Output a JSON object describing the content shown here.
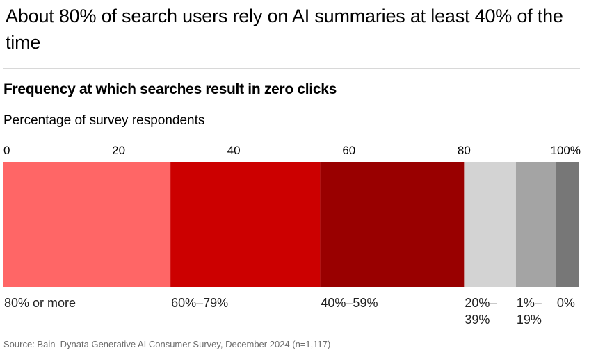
{
  "title": "About 80% of search users rely on AI summaries at least 40% of the time",
  "source": "Source: Bain–Dynata Generative AI Consumer Survey, December 2024 (n=1,117)",
  "chart_data": {
    "type": "bar",
    "orientation": "horizontal-stacked",
    "title": "Frequency at which searches result in zero clicks",
    "ylabel": "Percentage of survey respondents",
    "xlim": [
      0,
      100
    ],
    "ticks": [
      "0",
      "20",
      "40",
      "60",
      "80",
      "100%"
    ],
    "tick_values": [
      0,
      20,
      40,
      60,
      80,
      100
    ],
    "categories": [
      "80% or more",
      "60%–79%",
      "40%–59%",
      "20%–39%",
      "1%–19%",
      "0%"
    ],
    "category_lines": [
      [
        "80% or more"
      ],
      [
        "60%–79%"
      ],
      [
        "40%–59%"
      ],
      [
        "20%–",
        "39%"
      ],
      [
        "1%–",
        "19%"
      ],
      [
        "0%"
      ]
    ],
    "values": [
      29,
      26,
      25,
      9,
      7,
      4
    ],
    "colors": [
      "#ff6666",
      "#cc0000",
      "#990000",
      "#d3d3d3",
      "#a4a4a4",
      "#777777"
    ],
    "grid": false,
    "legend": "none"
  }
}
